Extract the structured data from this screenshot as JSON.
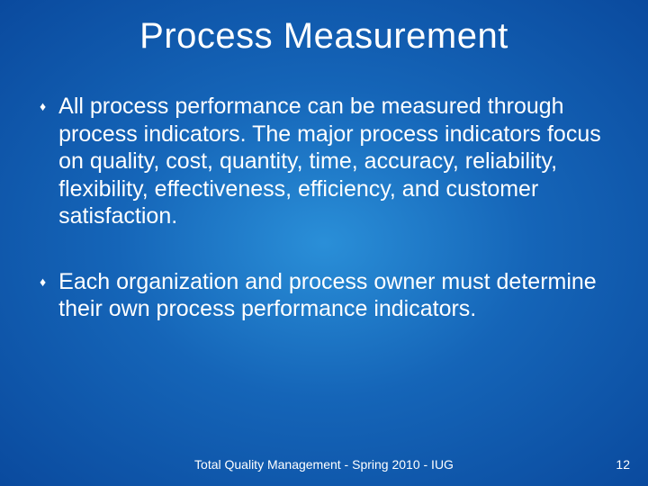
{
  "title": "Process Measurement",
  "bullets": [
    {
      "marker": "♦",
      "text": "All process performance can be measured through process indicators. The major process indicators focus on quality, cost, quantity, time, accuracy, reliability, flexibility, effectiveness, efficiency, and customer satisfaction."
    },
    {
      "marker": "♦",
      "text": "Each organization and process owner must determine their own process performance indicators."
    }
  ],
  "footer": "Total Quality Management - Spring 2010 - IUG",
  "page_number": "12",
  "colors": {
    "background_center": "#2a8fd8",
    "background_mid": "#1565b8",
    "background_edge": "#0a4a9e",
    "text": "#ffffff"
  },
  "typography": {
    "title_fontsize": 40,
    "body_fontsize": 25,
    "footer_fontsize": 14,
    "font_family": "Arial"
  }
}
